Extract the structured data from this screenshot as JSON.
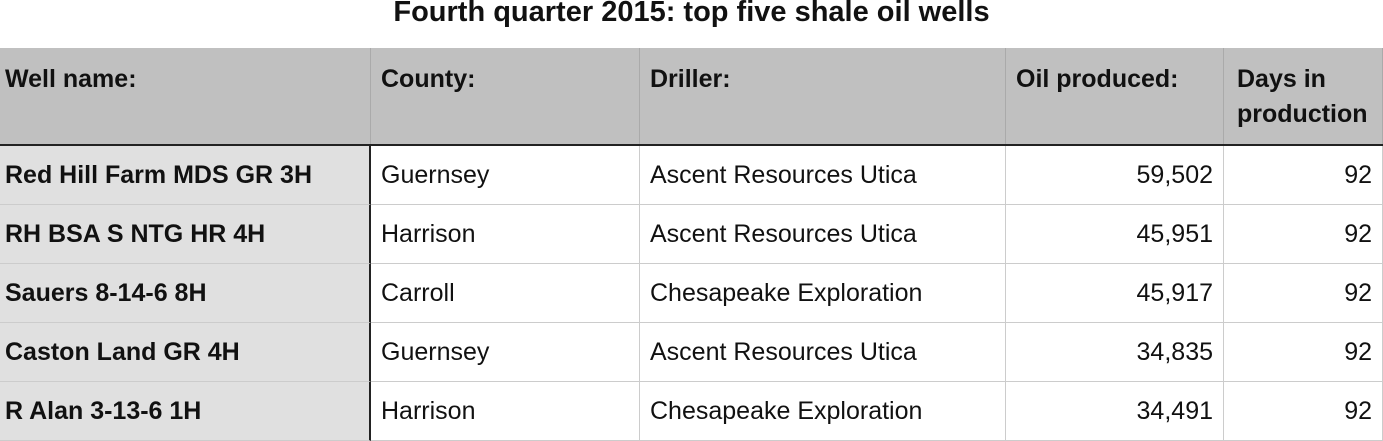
{
  "title": "Fourth quarter 2015: top five shale oil wells",
  "table": {
    "header": [
      "Well name:",
      "County:",
      "Driller:",
      "Oil produced:",
      "Days in production"
    ],
    "rows": [
      [
        "Red Hill Farm MDS GR 3H",
        "Guernsey",
        "Ascent Resources Utica",
        "59,502",
        "92"
      ],
      [
        "RH BSA S NTG HR 4H",
        "Harrison",
        "Ascent Resources Utica",
        "45,951",
        "92"
      ],
      [
        "Sauers 8-14-6 8H",
        "Carroll",
        "Chesapeake Exploration",
        "45,917",
        "92"
      ],
      [
        "Caston Land GR 4H",
        "Guernsey",
        "Ascent Resources Utica",
        "34,835",
        "92"
      ],
      [
        "R Alan 3-13-6 1H",
        "Harrison",
        "Chesapeake Exploration",
        "34,491",
        "92"
      ]
    ]
  }
}
